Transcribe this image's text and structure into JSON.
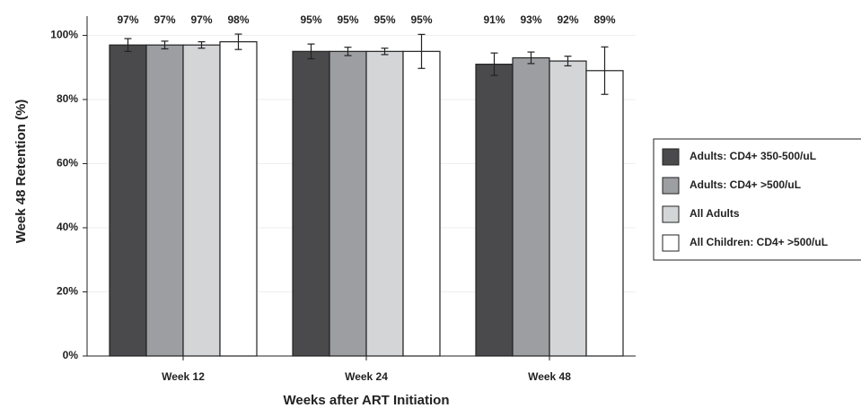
{
  "chart_data": {
    "type": "bar",
    "x_label": "Weeks after ART Initiation",
    "y_label": "Week 48 Retention (%)",
    "categories": [
      "Week 12",
      "Week 24",
      "Week 48"
    ],
    "series": [
      {
        "name": "Adults: CD4+ 350-500/uL",
        "color": "#4a4a4c",
        "values": [
          97,
          95,
          91
        ],
        "value_labels": [
          "97%",
          "95%",
          "91%"
        ],
        "errors": [
          2,
          2.3,
          3.5
        ]
      },
      {
        "name": "Adults: CD4+ >500/uL",
        "color": "#9d9ea2",
        "values": [
          97,
          95,
          93
        ],
        "value_labels": [
          "97%",
          "95%",
          "93%"
        ],
        "errors": [
          1.2,
          1.3,
          1.8
        ]
      },
      {
        "name": "All Adults",
        "color": "#d4d5d7",
        "values": [
          97,
          95,
          92
        ],
        "value_labels": [
          "97%",
          "95%",
          "92%"
        ],
        "errors": [
          1,
          1,
          1.5
        ]
      },
      {
        "name": "All Children: CD4+ >500/uL",
        "color": "#ffffff",
        "values": [
          98,
          95,
          89
        ],
        "value_labels": [
          "98%",
          "95%",
          "89%"
        ],
        "errors": [
          2.4,
          5.3,
          7.4
        ]
      }
    ],
    "ylim": [
      0,
      106
    ],
    "yticks": [
      {
        "value": 0,
        "label": "0%"
      },
      {
        "value": 20,
        "label": "20%"
      },
      {
        "value": 40,
        "label": "40%"
      },
      {
        "value": 60,
        "label": "60%"
      },
      {
        "value": 80,
        "label": "80%"
      },
      {
        "value": 100,
        "label": "100%"
      }
    ],
    "grid": true,
    "legend": "right"
  }
}
